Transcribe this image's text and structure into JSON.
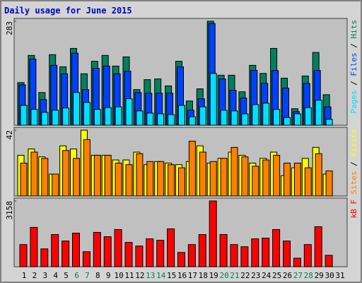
{
  "chart_data": [
    {
      "type": "bar",
      "title": "Daily usage for June 2015",
      "categories": [
        "1",
        "2",
        "3",
        "4",
        "5",
        "6",
        "7",
        "8",
        "9",
        "10",
        "11",
        "12",
        "13",
        "14",
        "15",
        "16",
        "17",
        "18",
        "19",
        "20",
        "21",
        "22",
        "23",
        "24",
        "25",
        "26",
        "27",
        "28",
        "29",
        "30",
        "31"
      ],
      "category_colors": [
        "#000000",
        "#000000",
        "#000000",
        "#000000",
        "#000000",
        "#00805c",
        "#00805c",
        "#000000",
        "#000000",
        "#000000",
        "#000000",
        "#000000",
        "#00805c",
        "#00805c",
        "#000000",
        "#000000",
        "#000000",
        "#000000",
        "#000000",
        "#00805c",
        "#00805c",
        "#000000",
        "#000000",
        "#000000",
        "#000000",
        "#000000",
        "#00805c",
        "#00805c",
        "#000000",
        "#000000",
        "#000000"
      ],
      "legend_separator": "/",
      "series": [
        {
          "name": "Hits",
          "color": "#00805c",
          "values": [
            116,
            190,
            89,
            192,
            159,
            209,
            140,
            174,
            190,
            161,
            186,
            97,
            124,
            126,
            107,
            174,
            66,
            99,
            283,
            136,
            136,
            91,
            163,
            141,
            209,
            128,
            45,
            134,
            198,
            83,
            0
          ]
        },
        {
          "name": "Files",
          "color": "#0040ff",
          "values": [
            110,
            180,
            70,
            163,
            140,
            196,
            97,
            155,
            161,
            140,
            147,
            89,
            87,
            87,
            87,
            159,
            41,
            72,
            277,
            126,
            95,
            74,
            149,
            114,
            149,
            101,
            37,
            114,
            149,
            50,
            0
          ]
        },
        {
          "name": "Pages",
          "color": "#00e0ff",
          "values": [
            54,
            43,
            35,
            41,
            47,
            89,
            62,
            43,
            48,
            50,
            72,
            39,
            33,
            31,
            29,
            54,
            23,
            50,
            141,
            41,
            39,
            31,
            56,
            60,
            43,
            21,
            31,
            48,
            68,
            16,
            0
          ]
        }
      ],
      "ylim": [
        0,
        283
      ],
      "yticks": [
        283
      ]
    },
    {
      "type": "bar",
      "series": [
        {
          "name": "Visits",
          "color": "#ffff00",
          "values": [
            26,
            30,
            25,
            14,
            32,
            30,
            42,
            26,
            26,
            23,
            23,
            28,
            20,
            22,
            21,
            20,
            22,
            32,
            21,
            24,
            28,
            26,
            21,
            24,
            28,
            13,
            18,
            24,
            31,
            14,
            0
          ]
        },
        {
          "name": "Sites",
          "color": "#ff8000",
          "values": [
            21,
            28,
            24,
            14,
            29,
            24,
            36,
            26,
            26,
            21,
            20,
            27,
            22,
            22,
            20,
            18,
            35,
            28,
            22,
            24,
            31,
            25,
            19,
            23,
            26,
            21,
            21,
            18,
            27,
            16,
            0
          ]
        }
      ],
      "ylim": [
        0,
        42
      ],
      "yticks": [
        42
      ]
    },
    {
      "type": "bar",
      "series": [
        {
          "name": "kB F",
          "color": "#ff0000",
          "values": [
            1064,
            1888,
            858,
            1545,
            1236,
            1613,
            721,
            1648,
            1442,
            1785,
            1167,
            995,
            1339,
            1270,
            1819,
            687,
            1064,
            1545,
            3158,
            1545,
            1064,
            961,
            1339,
            1373,
            1785,
            1236,
            412,
            1064,
            1922,
            549,
            0
          ]
        }
      ],
      "ylim": [
        0,
        3158
      ],
      "yticks": [
        3158
      ]
    }
  ]
}
